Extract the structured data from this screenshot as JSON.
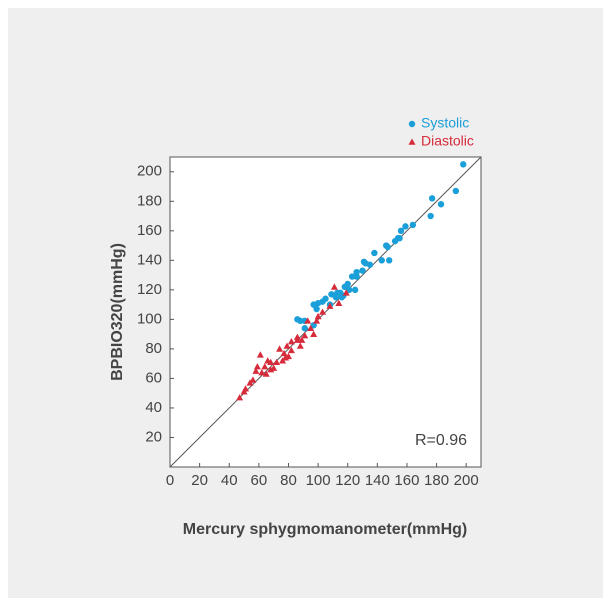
{
  "chart_data": {
    "type": "scatter",
    "xlabel": "Mercury sphygmomanometer(mmHg)",
    "ylabel": "BPBIO320(mmHg)",
    "annotation": "R=0.96",
    "legend": "top-right",
    "xlim": [
      0,
      210
    ],
    "ylim": [
      0,
      210
    ],
    "xticks": [
      0,
      20,
      40,
      60,
      80,
      100,
      120,
      140,
      160,
      180,
      200
    ],
    "yticks": [
      20,
      40,
      60,
      80,
      100,
      120,
      140,
      160,
      180,
      200
    ],
    "series": [
      {
        "name": "Systolic",
        "color": "#1a9fd9",
        "marker": "circle",
        "x": [
          198,
          193,
          183,
          177,
          176,
          164,
          159,
          156,
          154,
          152,
          147,
          146,
          148,
          138,
          135,
          131,
          130,
          126,
          126,
          123,
          120,
          118,
          121,
          115,
          113,
          109,
          112,
          105,
          103,
          100,
          97,
          99,
          91,
          88,
          86,
          97,
          91,
          116,
          108,
          125,
          132,
          143,
          155,
          117
        ],
        "y": [
          205,
          187,
          178,
          182,
          170,
          164,
          163,
          160,
          155,
          153,
          149,
          150,
          140,
          145,
          137,
          139,
          133,
          132,
          129,
          129,
          124,
          122,
          120,
          118,
          118,
          117,
          115,
          114,
          112,
          111,
          110,
          107,
          99,
          99,
          100,
          96,
          94,
          115,
          110,
          120,
          138,
          140,
          155,
          116
        ]
      },
      {
        "name": "Diastolic",
        "color": "#d62b3a",
        "marker": "triangle",
        "x": [
          111,
          119,
          114,
          108,
          103,
          100,
          99,
          93,
          97,
          91,
          86,
          86,
          88,
          82,
          79,
          80,
          77,
          76,
          72,
          68,
          66,
          61,
          64,
          62,
          58,
          56,
          54,
          50,
          47,
          51,
          65,
          68,
          74,
          82,
          95,
          89,
          78,
          59,
          70
        ],
        "y": [
          122,
          118,
          111,
          109,
          105,
          102,
          99,
          99,
          90,
          89,
          88,
          86,
          82,
          79,
          82,
          75,
          77,
          72,
          71,
          71,
          72,
          76,
          68,
          64,
          65,
          59,
          57,
          51,
          47,
          53,
          63,
          66,
          80,
          85,
          94,
          86,
          74,
          68,
          67
        ]
      }
    ]
  }
}
